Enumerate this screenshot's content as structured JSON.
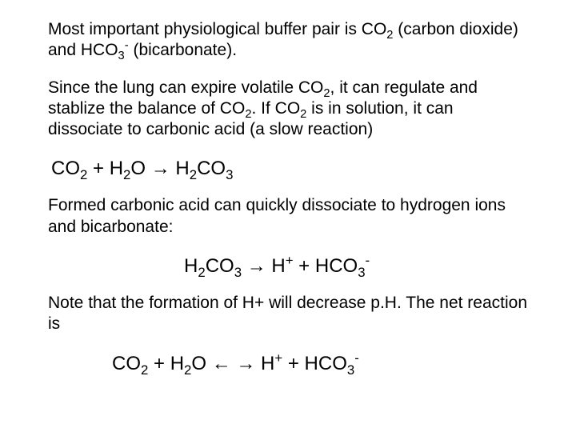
{
  "typography": {
    "body_fontsize": 21,
    "equation_fontsize": 24,
    "font_family": "Arial",
    "text_color": "#000000",
    "background_color": "#ffffff"
  },
  "p1a": "Most important physiological buffer pair is CO",
  "p1b": " (carbon dioxide) and HCO",
  "p1c": " (bicarbonate).",
  "p2a": "Since the lung can expire volatile CO",
  "p2b": ", it can regulate and stablize the balance of CO",
  "p2c": ". If CO",
  "p2d": " is in solution, it can dissociate to carbonic acid (a slow reaction)",
  "eq1_CO": "CO",
  "eq1_plus": " + H",
  "eq1_O": "O  ",
  "eq1_arrow": "→",
  "eq1_H2": "  H",
  "eq1_CO3": "CO",
  "p3": "Formed carbonic acid can quickly dissociate to hydrogen ions and bicarbonate:",
  "eq2_H2": "H",
  "eq2_CO3": "CO",
  "eq2_sp": "  ",
  "eq2_arrow": "→",
  "eq2_Hplus": "  H",
  "eq2_plus2": "  +  HCO",
  "p4": "Note that the formation of H+ will decrease p.H. The net reaction is",
  "eq3_CO": "CO",
  "eq3_plus": " + H",
  "eq3_O": "O  ",
  "eq3_arrowL": "←",
  "eq3_gap": "   ",
  "eq3_arrowR": "→",
  "eq3_H": " H",
  "eq3_plus2": "  +  HCO",
  "sub2": "2",
  "sub3": "3",
  "supMinus": "-",
  "supPlus": "+"
}
